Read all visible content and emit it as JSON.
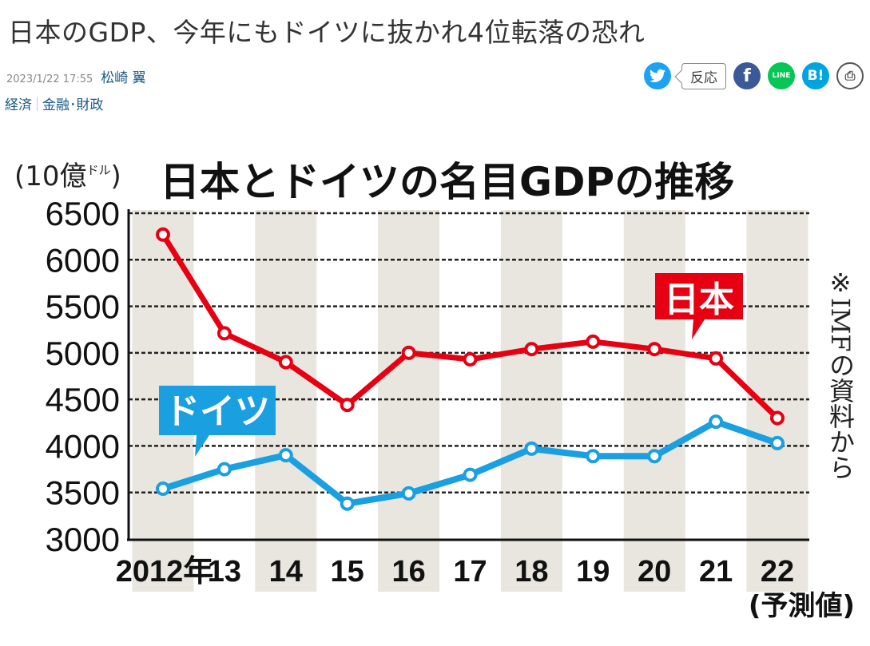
{
  "article": {
    "title": "日本のGDP、今年にもドイツに抜かれ4位転落の恐れ",
    "date": "2023/1/22 17:55",
    "author": "松崎 翼",
    "categories": [
      "経済",
      "金融･財政"
    ]
  },
  "share": {
    "twitter_icon": "twitter-icon",
    "reaction_label": "反応",
    "facebook_icon": "facebook-icon",
    "line_icon": "line-icon",
    "hatena_label": "B!",
    "print_icon": "printer-icon",
    "line_label": "LINE"
  },
  "chart_data": {
    "type": "line",
    "title": "日本とドイツの名目GDPの推移",
    "ylabel_unit": "(10億ドル)",
    "ylabel_unit_main": "(10億",
    "ylabel_unit_small": "ドル",
    "ylabel_unit_close": ")",
    "source_note": "※IMFの資料から",
    "forecast_note": "(予測値)",
    "categories": [
      "2012年",
      "13",
      "14",
      "15",
      "16",
      "17",
      "18",
      "19",
      "20",
      "21",
      "22"
    ],
    "ylim": [
      3000,
      6500
    ],
    "yticks": [
      6500,
      6000,
      5500,
      5000,
      4500,
      4000,
      3500,
      3000
    ],
    "grid": "dashed horizontal",
    "series": [
      {
        "name": "日本",
        "color": "#e60012",
        "values": [
          6270,
          5210,
          4900,
          4440,
          5000,
          4930,
          5040,
          5120,
          5040,
          4940,
          4300
        ]
      },
      {
        "name": "ドイツ",
        "color": "#1aa0e0",
        "values": [
          3540,
          3750,
          3900,
          3380,
          3490,
          3690,
          3970,
          3890,
          3890,
          4260,
          4030
        ]
      }
    ],
    "stripe_color": "#e8e6df"
  }
}
